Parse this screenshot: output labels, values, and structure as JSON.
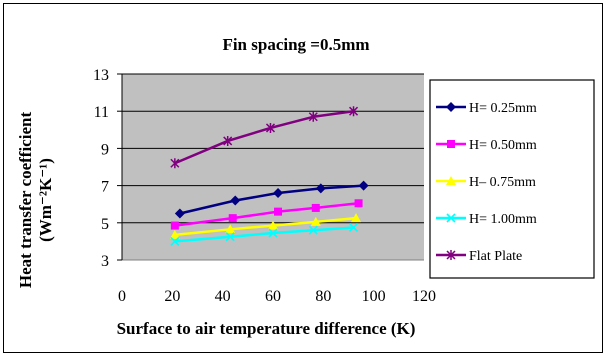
{
  "chart_data": {
    "type": "line",
    "title": "Fin spacing =0.5mm",
    "xlabel": "Surface to air temperature difference (K)",
    "ylabel_line1": "Heat transfer coefficient",
    "ylabel_line2": "(Wm⁻²K⁻¹)",
    "xlim": [
      0,
      120
    ],
    "ylim": [
      3,
      13
    ],
    "xticks": [
      0,
      20,
      40,
      60,
      80,
      100,
      120
    ],
    "yticks": [
      3,
      5,
      7,
      9,
      11,
      13
    ],
    "grid": "horizontal",
    "plot_background": "#c0c0c0",
    "legend_position": "right",
    "series": [
      {
        "name": "H= 0.25mm",
        "color": "#000080",
        "marker": "diamond",
        "x": [
          23,
          45,
          62,
          79,
          96
        ],
        "y": [
          5.5,
          6.2,
          6.6,
          6.85,
          7.0
        ]
      },
      {
        "name": "H= 0.50mm",
        "color": "#ff00ff",
        "marker": "square",
        "x": [
          21,
          44,
          62,
          77,
          94
        ],
        "y": [
          4.85,
          5.25,
          5.6,
          5.8,
          6.05
        ]
      },
      {
        "name": "H– 0.75mm",
        "color": "#ffff00",
        "marker": "triangle",
        "x": [
          21,
          43,
          60,
          77,
          93
        ],
        "y": [
          4.35,
          4.65,
          4.85,
          5.05,
          5.25
        ]
      },
      {
        "name": "H= 1.00mm",
        "color": "#00ffff",
        "marker": "x",
        "x": [
          21,
          43,
          60,
          76,
          92
        ],
        "y": [
          4.0,
          4.25,
          4.45,
          4.6,
          4.75
        ]
      },
      {
        "name": "Flat Plate",
        "color": "#800080",
        "marker": "star",
        "x": [
          21,
          42,
          59,
          76,
          92
        ],
        "y": [
          8.2,
          9.4,
          10.1,
          10.7,
          11.0
        ]
      }
    ]
  }
}
